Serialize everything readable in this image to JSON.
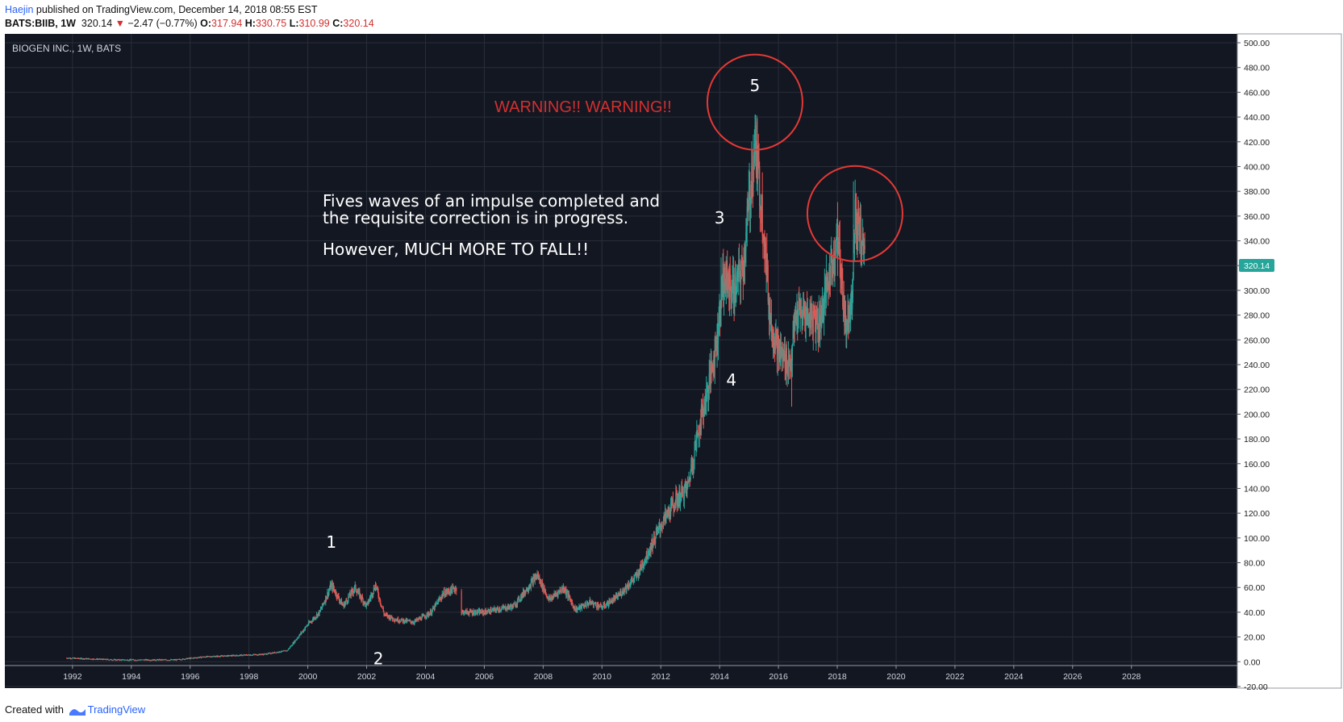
{
  "header": {
    "author": "Haejin",
    "published_text": "published on TradingView.com, December 14, 2018 08:55 EST",
    "symbol": "BATS:BIIB, 1W",
    "last": "320.14",
    "change": "−2.47 (−0.77%)",
    "o_label": "O:",
    "o": "317.94",
    "h_label": "H:",
    "h": "330.75",
    "l_label": "L:",
    "l": "310.99",
    "c_label": "C:",
    "c": "320.14"
  },
  "footer": {
    "created_with": "Created with",
    "brand": "TradingView"
  },
  "colors": {
    "background": "#131722",
    "grid": "#2a2e39",
    "up": "#26a69a",
    "down": "#ef5350",
    "annotation": "#ffffff",
    "warning": "#d32f2f",
    "circle": "#e53935",
    "price_badge": "#26a69a"
  },
  "chart_data": {
    "type": "candlestick",
    "title": "BIOGEN INC., 1W, BATS",
    "ylim": [
      -20,
      500
    ],
    "xlim": [
      1989.7,
      2031.6
    ],
    "y_ticks": [
      -20,
      0,
      20,
      40,
      60,
      80,
      100,
      120,
      140,
      160,
      180,
      200,
      220,
      240,
      260,
      280,
      300,
      320,
      340,
      360,
      380,
      400,
      420,
      440,
      460,
      480,
      500
    ],
    "y_tick_labels": [
      "-20.00",
      "0.00",
      "20.00",
      "40.00",
      "60.00",
      "80.00",
      "100.00",
      "120.00",
      "140.00",
      "160.00",
      "180.00",
      "200.00",
      "220.00",
      "240.00",
      "260.00",
      "280.00",
      "300.00",
      "320.00",
      "340.00",
      "360.00",
      "380.00",
      "400.00",
      "420.00",
      "440.00",
      "460.00",
      "480.00",
      "500.00"
    ],
    "x_ticks": [
      1992,
      1994,
      1996,
      1998,
      2000,
      2002,
      2004,
      2006,
      2008,
      2010,
      2012,
      2014,
      2016,
      2018,
      2020,
      2022,
      2024,
      2026,
      2028
    ],
    "x_tick_labels": [
      "1992",
      "1994",
      "1996",
      "1998",
      "2000",
      "2002",
      "2004",
      "2006",
      "2008",
      "2010",
      "2012",
      "2014",
      "2016",
      "2018",
      "2020",
      "2022",
      "2024",
      "2026",
      "2028"
    ],
    "last_price": 320.14,
    "last_price_label": "320.14",
    "price_path": [
      [
        1991.8,
        3
      ],
      [
        1993.5,
        1.5
      ],
      [
        1995.5,
        1.5
      ],
      [
        1996.5,
        4
      ],
      [
        1998.5,
        6
      ],
      [
        1999.3,
        9
      ],
      [
        2000.0,
        30
      ],
      [
        2000.4,
        40
      ],
      [
        2000.8,
        62
      ],
      [
        2001.2,
        45
      ],
      [
        2001.6,
        60
      ],
      [
        2002.0,
        45
      ],
      [
        2002.3,
        62
      ],
      [
        2002.6,
        38
      ],
      [
        2003.0,
        34
      ],
      [
        2003.6,
        32
      ],
      [
        2004.2,
        40
      ],
      [
        2004.6,
        55
      ],
      [
        2005.1,
        60
      ],
      [
        2005.2,
        40
      ],
      [
        2006.0,
        40
      ],
      [
        2007.0,
        45
      ],
      [
        2007.8,
        70
      ],
      [
        2008.2,
        50
      ],
      [
        2008.7,
        60
      ],
      [
        2009.1,
        42
      ],
      [
        2009.6,
        48
      ],
      [
        2010.0,
        44
      ],
      [
        2010.5,
        52
      ],
      [
        2011.2,
        70
      ],
      [
        2011.6,
        90
      ],
      [
        2012.0,
        110
      ],
      [
        2012.5,
        130
      ],
      [
        2012.9,
        140
      ],
      [
        2013.3,
        190
      ],
      [
        2013.6,
        220
      ],
      [
        2013.9,
        260
      ],
      [
        2014.1,
        310
      ],
      [
        2014.5,
        300
      ],
      [
        2014.8,
        320
      ],
      [
        2015.0,
        370
      ],
      [
        2015.2,
        420
      ],
      [
        2015.5,
        350
      ],
      [
        2015.7,
        280
      ],
      [
        2016.0,
        250
      ],
      [
        2016.4,
        240
      ],
      [
        2016.6,
        280
      ],
      [
        2017.0,
        280
      ],
      [
        2017.4,
        275
      ],
      [
        2017.8,
        320
      ],
      [
        2018.0,
        345
      ],
      [
        2018.3,
        270
      ],
      [
        2018.5,
        300
      ],
      [
        2018.6,
        360
      ],
      [
        2018.9,
        335
      ],
      [
        2018.95,
        320
      ]
    ],
    "wave_labels": [
      {
        "label": "1",
        "x": 2000.8,
        "y": 92
      },
      {
        "label": "2",
        "x": 2002.4,
        "y": -2
      },
      {
        "label": "3",
        "x": 2014.0,
        "y": 354
      },
      {
        "label": "4",
        "x": 2014.4,
        "y": 223
      },
      {
        "label": "5",
        "x": 2015.2,
        "y": 461
      }
    ],
    "highlight_circles": [
      {
        "x": 2015.2,
        "y": 452
      },
      {
        "x": 2018.6,
        "y": 362
      }
    ],
    "annotations": {
      "warning": "WARNING!! WARNING!!",
      "note_line1": "Fives waves of an impulse completed and",
      "note_line2": "the requisite correction is in progress.",
      "note_line3": "However, MUCH MORE TO FALL!!"
    }
  }
}
